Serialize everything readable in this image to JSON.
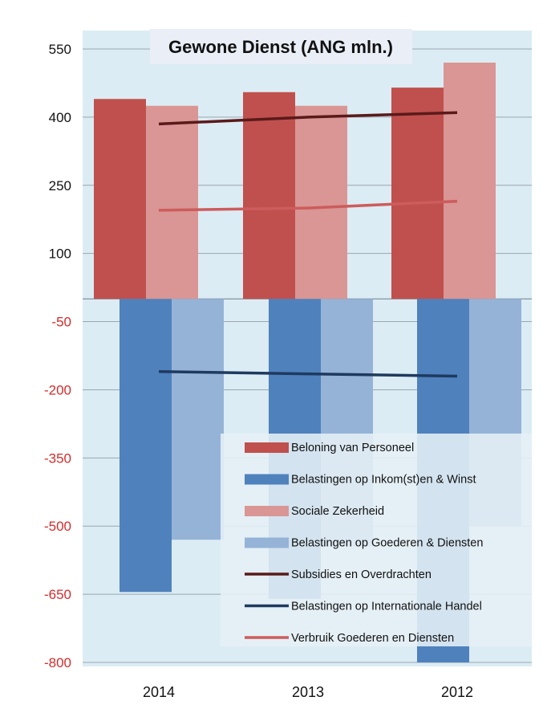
{
  "chart_data": {
    "type": "bar",
    "title": "Gewone Dienst (ANG mln.)",
    "categories": [
      "2014",
      "2013",
      "2012"
    ],
    "ylim": [
      -800,
      550
    ],
    "yticks": [
      550,
      400,
      250,
      100,
      -50,
      -200,
      -350,
      -500,
      -650,
      -800
    ],
    "grid": true,
    "legend_position": "bottom-right",
    "colors": {
      "negative_tick": "#d62b2b",
      "positive_tick": "#111111",
      "plot_bg": "#dcecf4"
    },
    "series": [
      {
        "name": "Beloning van Personeel",
        "kind": "bar",
        "color": "#c0504d",
        "values": [
          440,
          455,
          465
        ]
      },
      {
        "name": "Belastingen op Inkom(st)en & Winst",
        "kind": "bar",
        "color": "#4f81bd",
        "values": [
          -645,
          -660,
          -800
        ]
      },
      {
        "name": "Sociale Zekerheid",
        "kind": "bar",
        "color": "#d99694",
        "values": [
          425,
          425,
          520
        ]
      },
      {
        "name": "Belastingen op Goederen & Diensten",
        "kind": "bar",
        "color": "#95b3d7",
        "values": [
          -530,
          -545,
          -500
        ]
      },
      {
        "name": "Subsidies en Overdrachten",
        "kind": "line",
        "color": "#5a1a1a",
        "values": [
          385,
          400,
          410
        ]
      },
      {
        "name": "Belastingen op Internationale Handel",
        "kind": "line",
        "color": "#1f3a5f",
        "values": [
          -160,
          -165,
          -170
        ]
      },
      {
        "name": "Verbruik Goederen en Diensten",
        "kind": "line",
        "color": "#cd5c5c",
        "values": [
          195,
          200,
          215
        ]
      }
    ]
  }
}
